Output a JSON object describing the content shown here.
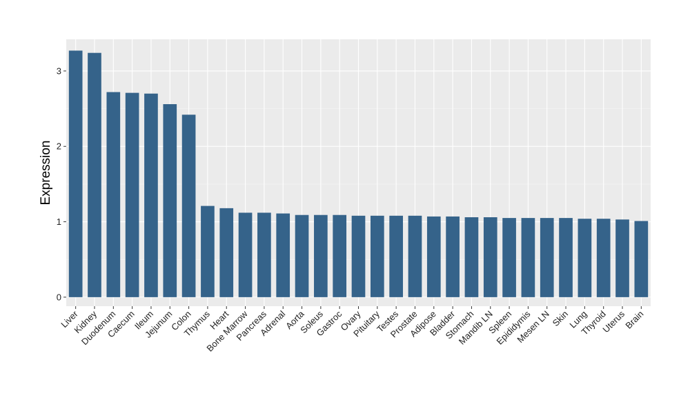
{
  "chart_data": {
    "type": "bar",
    "xlabel": "",
    "ylabel": "Expression",
    "ylim": [
      -0.12,
      3.42
    ],
    "yticks": [
      0,
      1,
      2,
      3
    ],
    "grid": true,
    "colors": {
      "bar": "#35638A",
      "panel": "#EBEBEB",
      "grid_major": "#FFFFFF",
      "grid_minor": "#F5F5F5"
    },
    "categories": [
      "Liver",
      "Kidney",
      "Duodenum",
      "Caecum",
      "Ileum",
      "Jejunum",
      "Colon",
      "Thymus",
      "Heart",
      "Bone Marrow",
      "Pancreas",
      "Adrenal",
      "Aorta",
      "Soleus",
      "Gastroc",
      "Ovary",
      "Pituitary",
      "Testes",
      "Prostate",
      "Adipose",
      "Bladder",
      "Stomach",
      "Mandib LN",
      "Spleen",
      "Epididymis",
      "Mesen LN",
      "Skin",
      "Lung",
      "Thyroid",
      "Uterus",
      "Brain"
    ],
    "values": [
      3.27,
      3.24,
      2.72,
      2.71,
      2.7,
      2.56,
      2.42,
      1.21,
      1.18,
      1.12,
      1.12,
      1.11,
      1.09,
      1.09,
      1.09,
      1.08,
      1.08,
      1.08,
      1.08,
      1.07,
      1.07,
      1.06,
      1.06,
      1.05,
      1.05,
      1.05,
      1.05,
      1.04,
      1.04,
      1.03,
      1.01
    ]
  }
}
